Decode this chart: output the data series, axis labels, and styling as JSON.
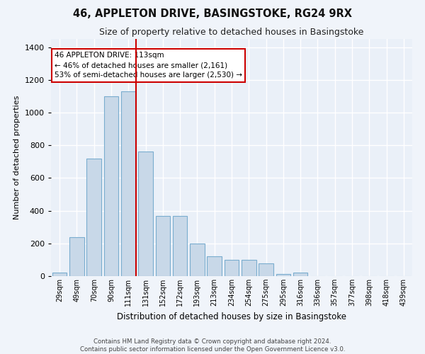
{
  "title": "46, APPLETON DRIVE, BASINGSTOKE, RG24 9RX",
  "subtitle": "Size of property relative to detached houses in Basingstoke",
  "xlabel": "Distribution of detached houses by size in Basingstoke",
  "ylabel": "Number of detached properties",
  "footer_line1": "Contains HM Land Registry data © Crown copyright and database right 2024.",
  "footer_line2": "Contains public sector information licensed under the Open Government Licence v3.0.",
  "bar_color": "#c8d8e8",
  "bar_edge_color": "#7aadcf",
  "background_color": "#eaf0f8",
  "grid_color": "#ffffff",
  "annotation_text_line1": "46 APPLETON DRIVE: 113sqm",
  "annotation_text_line2": "← 46% of detached houses are smaller (2,161)",
  "annotation_text_line3": "53% of semi-detached houses are larger (2,530) →",
  "red_line_x": 113,
  "categories": [
    "29sqm",
    "49sqm",
    "70sqm",
    "90sqm",
    "111sqm",
    "131sqm",
    "152sqm",
    "172sqm",
    "193sqm",
    "213sqm",
    "234sqm",
    "254sqm",
    "275sqm",
    "295sqm",
    "316sqm",
    "336sqm",
    "357sqm",
    "377sqm",
    "398sqm",
    "418sqm",
    "439sqm"
  ],
  "bin_width": 21,
  "values": [
    20,
    240,
    720,
    1100,
    1130,
    760,
    370,
    370,
    200,
    120,
    100,
    100,
    80,
    15,
    20,
    0,
    0,
    0,
    0,
    0,
    0
  ],
  "ylim": [
    0,
    1450
  ],
  "yticks": [
    0,
    200,
    400,
    600,
    800,
    1000,
    1200,
    1400
  ],
  "fig_facecolor": "#f0f4fa"
}
